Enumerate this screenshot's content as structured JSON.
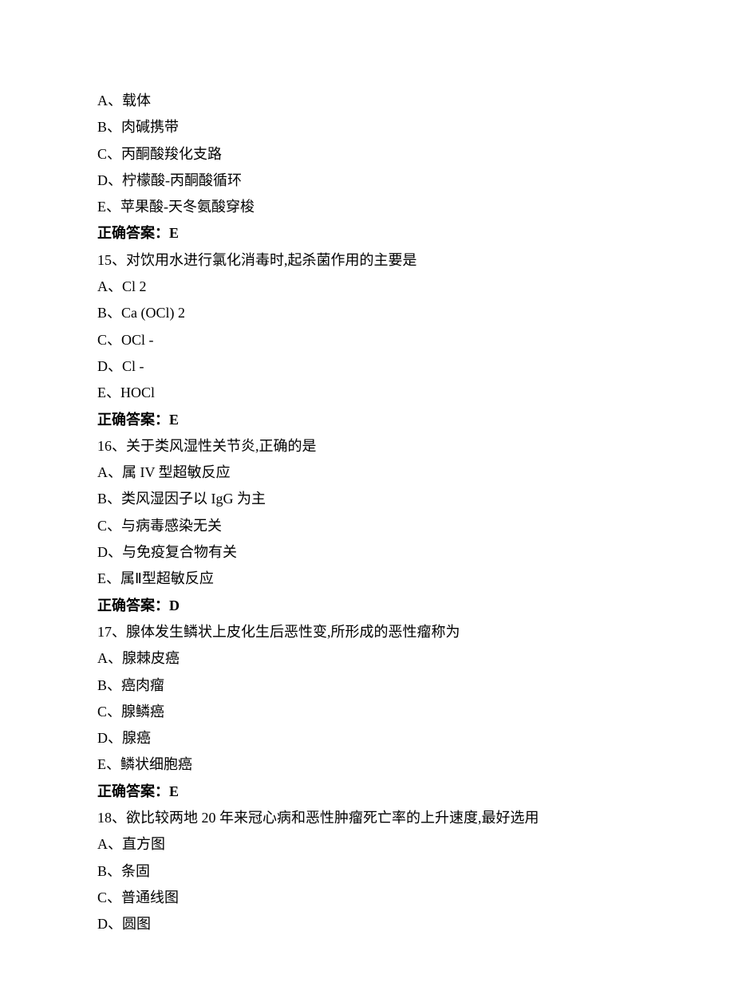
{
  "q14_options": {
    "A": "A、载体",
    "B": "B、肉碱携带",
    "C": "C、丙酮酸羧化支路",
    "D": "D、柠檬酸-丙酮酸循环",
    "E": "E、苹果酸-天冬氨酸穿梭"
  },
  "q14_answer_label": "正确答案：",
  "q14_answer_value": "E",
  "q15_stem": "15、对饮用水进行氯化消毒时,起杀菌作用的主要是",
  "q15_options": {
    "A": "A、Cl 2",
    "B": "B、Ca (OCl) 2",
    "C": "C、OCl -",
    "D": "D、Cl -",
    "E": "E、HOCl"
  },
  "q15_answer_label": "正确答案：",
  "q15_answer_value": "E",
  "q16_stem": "16、关于类风湿性关节炎,正确的是",
  "q16_options": {
    "A": "A、属 IV 型超敏反应",
    "B": "B、类风湿因子以 IgG 为主",
    "C": "C、与病毒感染无关",
    "D": "D、与免疫复合物有关",
    "E": "E、属Ⅱ型超敏反应"
  },
  "q16_answer_label": "正确答案：",
  "q16_answer_value": "D",
  "q17_stem": "17、腺体发生鳞状上皮化生后恶性变,所形成的恶性瘤称为",
  "q17_options": {
    "A": "A、腺棘皮癌",
    "B": "B、癌肉瘤",
    "C": "C、腺鳞癌",
    "D": "D、腺癌",
    "E": "E、鳞状细胞癌"
  },
  "q17_answer_label": "正确答案：",
  "q17_answer_value": "E",
  "q18_stem": "18、欲比较两地 20 年来冠心病和恶性肿瘤死亡率的上升速度,最好选用",
  "q18_options": {
    "A": "A、直方图",
    "B": "B、条固",
    "C": "C、普通线图",
    "D": "D、圆图"
  }
}
